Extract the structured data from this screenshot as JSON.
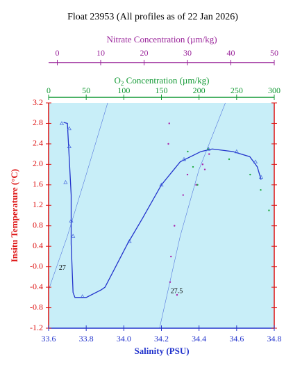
{
  "chart_data": {
    "type": "line",
    "title": "Float 23953  (All profiles as of 22 Jan 2026)",
    "xlabel": "Salinity (PSU)",
    "ylabel": "Insitu Temperature (°C)",
    "nitrate_label": "Nitrate Concentration (µm/kg)",
    "o2_label_parts": [
      "O",
      "2",
      " Concentration (µm/kg)"
    ],
    "xlim": [
      33.6,
      34.8
    ],
    "xticks": [
      33.6,
      33.8,
      {
        "value": 34.0,
        "label": "34.0"
      },
      34.2,
      34.4,
      34.6,
      34.8
    ],
    "ylim": [
      -1.2,
      3.2
    ],
    "yticks": [
      -1.2,
      -0.8,
      -0.4,
      {
        "value": 0,
        "label": "-0.0"
      },
      0.4,
      0.8,
      1.2,
      1.6,
      {
        "value": 2.0,
        "label": "2.0"
      },
      2.4,
      2.8,
      3.2
    ],
    "nitrate_xlim": [
      -2,
      50
    ],
    "nitrate_xticks": [
      0,
      10,
      20,
      30,
      40,
      50
    ],
    "o2_xlim": [
      0,
      300
    ],
    "o2_xticks": [
      0,
      50,
      100,
      150,
      200,
      250,
      300
    ],
    "series": [
      {
        "axis": "salinity",
        "marker": "line",
        "color": "#2233cc",
        "x": [
          33.68,
          33.7,
          33.72,
          33.72,
          33.73,
          33.74,
          33.8,
          33.88,
          33.9,
          34.02,
          34.1,
          34.2,
          34.3,
          34.41,
          34.47,
          34.58,
          34.67,
          34.71,
          34.73
        ],
        "values": [
          2.82,
          2.8,
          1.4,
          0.45,
          -0.5,
          -0.6,
          -0.6,
          -0.45,
          -0.4,
          0.45,
          0.95,
          1.6,
          2.05,
          2.25,
          2.3,
          2.25,
          2.15,
          1.95,
          1.7
        ]
      },
      {
        "axis": "salinity",
        "marker": "triangle",
        "color": "#4466dd",
        "x": [
          33.67,
          33.71,
          33.71,
          33.69,
          33.72,
          33.73,
          33.78,
          34.03,
          34.2,
          34.32,
          34.45,
          34.6,
          34.7,
          34.73
        ],
        "values": [
          2.8,
          2.7,
          2.35,
          1.65,
          0.9,
          0.6,
          -0.58,
          0.5,
          1.6,
          2.1,
          2.3,
          2.25,
          2.05,
          1.75
        ]
      },
      {
        "axis": "nitrate",
        "marker": "dot",
        "color": "#aa22aa",
        "x": [
          25.8,
          25.6,
          30,
          32,
          33.5,
          35,
          34,
          29,
          27,
          26.2,
          26,
          27.6
        ],
        "values": [
          2.8,
          2.4,
          1.8,
          1.6,
          2.0,
          2.2,
          1.9,
          1.4,
          0.8,
          0.2,
          -0.3,
          -0.55
        ]
      },
      {
        "axis": "o2",
        "marker": "dot",
        "color": "#22aa44",
        "x": [
          185,
          212,
          240,
          268,
          282,
          293,
          192,
          198
        ],
        "values": [
          2.25,
          2.3,
          2.1,
          1.8,
          1.5,
          1.1,
          1.95,
          1.6
        ]
      }
    ],
    "isopycnals": [
      {
        "label": "27",
        "x": [
          33.6,
          33.7,
          33.8,
          33.914
        ],
        "values": [
          -0.45,
          0.6,
          1.8,
          3.2
        ]
      },
      {
        "label": "27.5",
        "x": [
          34.19,
          34.3,
          34.4,
          34.54
        ],
        "values": [
          -1.2,
          0.6,
          1.9,
          3.2
        ]
      }
    ]
  }
}
